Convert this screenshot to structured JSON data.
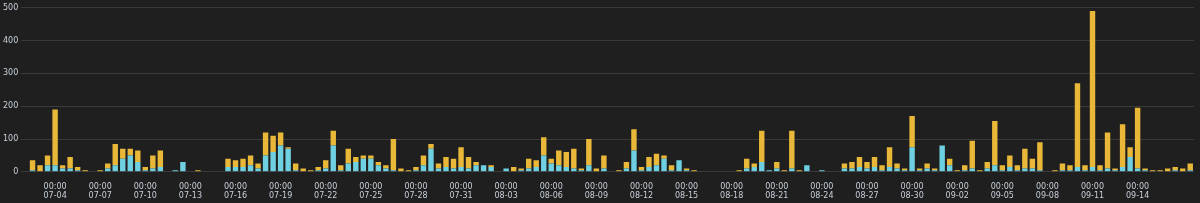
{
  "chart_data": {
    "type": "bar",
    "stacked": true,
    "grid": true,
    "categories": [
      null,
      null,
      null,
      null,
      "00:00\n07-04",
      null,
      null,
      null,
      null,
      null,
      "00:00\n07-07",
      null,
      null,
      null,
      null,
      null,
      "00:00\n07-10",
      null,
      null,
      null,
      null,
      null,
      "00:00\n07-13",
      null,
      null,
      null,
      null,
      null,
      "00:00\n07-16",
      null,
      null,
      null,
      null,
      null,
      "00:00\n07-19",
      null,
      null,
      null,
      null,
      null,
      "00:00\n07-22",
      null,
      null,
      null,
      null,
      null,
      "00:00\n07-25",
      null,
      null,
      null,
      null,
      null,
      "00:00\n07-28",
      null,
      null,
      null,
      null,
      null,
      "00:00\n07-31",
      null,
      null,
      null,
      null,
      null,
      "00:00\n08-03",
      null,
      null,
      null,
      null,
      null,
      "00:00\n08-06",
      null,
      null,
      null,
      null,
      null,
      "00:00\n08-09",
      null,
      null,
      null,
      null,
      null,
      "00:00\n08-12",
      null,
      null,
      null,
      null,
      null,
      "00:00\n08-15",
      null,
      null,
      null,
      null,
      null,
      "00:00\n08-18",
      null,
      null,
      null,
      null,
      null,
      "00:00\n08-21",
      null,
      null,
      null,
      null,
      null,
      "00:00\n08-24",
      null,
      null,
      null,
      null,
      null,
      "00:00\n08-27",
      null,
      null,
      null,
      null,
      null,
      "00:00\n08-30",
      null,
      null,
      null,
      null,
      null,
      "00:00\n09-02",
      null,
      null,
      null,
      null,
      null,
      "00:00\n09-05",
      null,
      null,
      null,
      null,
      null,
      "00:00\n09-08",
      null,
      null,
      null,
      null,
      null,
      "00:00\n09-11",
      null,
      null,
      null,
      null,
      null,
      "00:00\n09-14",
      null,
      null,
      null,
      null,
      null,
      null,
      null
    ],
    "series": [
      {
        "color": "#6ed0e0",
        "values": [
          0,
          5,
          0,
          20,
          20,
          10,
          10,
          5,
          0,
          0,
          0,
          10,
          20,
          40,
          50,
          30,
          5,
          10,
          15,
          0,
          5,
          30,
          0,
          0,
          0,
          0,
          0,
          15,
          15,
          15,
          20,
          10,
          50,
          60,
          80,
          70,
          5,
          0,
          0,
          5,
          10,
          80,
          5,
          25,
          30,
          40,
          40,
          20,
          10,
          5,
          0,
          0,
          5,
          20,
          70,
          10,
          15,
          10,
          15,
          10,
          20,
          20,
          15,
          0,
          10,
          0,
          5,
          10,
          15,
          50,
          25,
          20,
          15,
          10,
          5,
          20,
          0,
          10,
          0,
          0,
          10,
          65,
          5,
          15,
          20,
          40,
          5,
          35,
          5,
          0,
          0,
          0,
          0,
          0,
          0,
          0,
          10,
          15,
          30,
          5,
          10,
          0,
          10,
          0,
          20,
          0,
          5,
          0,
          0,
          10,
          10,
          15,
          10,
          15,
          5,
          15,
          10,
          5,
          75,
          5,
          10,
          5,
          80,
          20,
          0,
          5,
          10,
          0,
          10,
          20,
          5,
          15,
          5,
          10,
          10,
          5,
          0,
          0,
          5,
          5,
          15,
          5,
          15,
          5,
          10,
          5,
          15,
          45,
          10,
          5,
          0,
          0,
          0,
          5,
          0,
          5
        ]
      },
      {
        "color": "#eab839",
        "values": [
          0,
          30,
          20,
          30,
          170,
          10,
          35,
          10,
          5,
          0,
          5,
          15,
          65,
          30,
          20,
          35,
          10,
          40,
          50,
          0,
          0,
          0,
          0,
          5,
          0,
          0,
          0,
          25,
          20,
          25,
          30,
          15,
          70,
          50,
          40,
          5,
          20,
          10,
          5,
          10,
          25,
          45,
          15,
          45,
          15,
          10,
          10,
          10,
          10,
          95,
          10,
          5,
          10,
          30,
          15,
          15,
          30,
          30,
          60,
          35,
          10,
          0,
          5,
          0,
          0,
          15,
          5,
          30,
          20,
          55,
          15,
          45,
          45,
          60,
          5,
          80,
          10,
          40,
          0,
          5,
          20,
          65,
          10,
          30,
          35,
          10,
          15,
          0,
          5,
          5,
          0,
          0,
          0,
          0,
          0,
          5,
          30,
          10,
          95,
          0,
          20,
          5,
          115,
          5,
          0,
          0,
          0,
          0,
          0,
          15,
          20,
          30,
          20,
          30,
          15,
          60,
          15,
          5,
          95,
          5,
          15,
          5,
          0,
          20,
          5,
          15,
          85,
          5,
          20,
          135,
          15,
          35,
          15,
          60,
          30,
          85,
          0,
          5,
          20,
          15,
          255,
          15,
          475,
          15,
          110,
          5,
          130,
          30,
          185,
          5,
          5,
          5,
          10,
          10,
          10,
          20
        ]
      }
    ],
    "ylim": [
      0,
      500
    ],
    "yticks": [
      0,
      100,
      200,
      300,
      400,
      500
    ]
  }
}
